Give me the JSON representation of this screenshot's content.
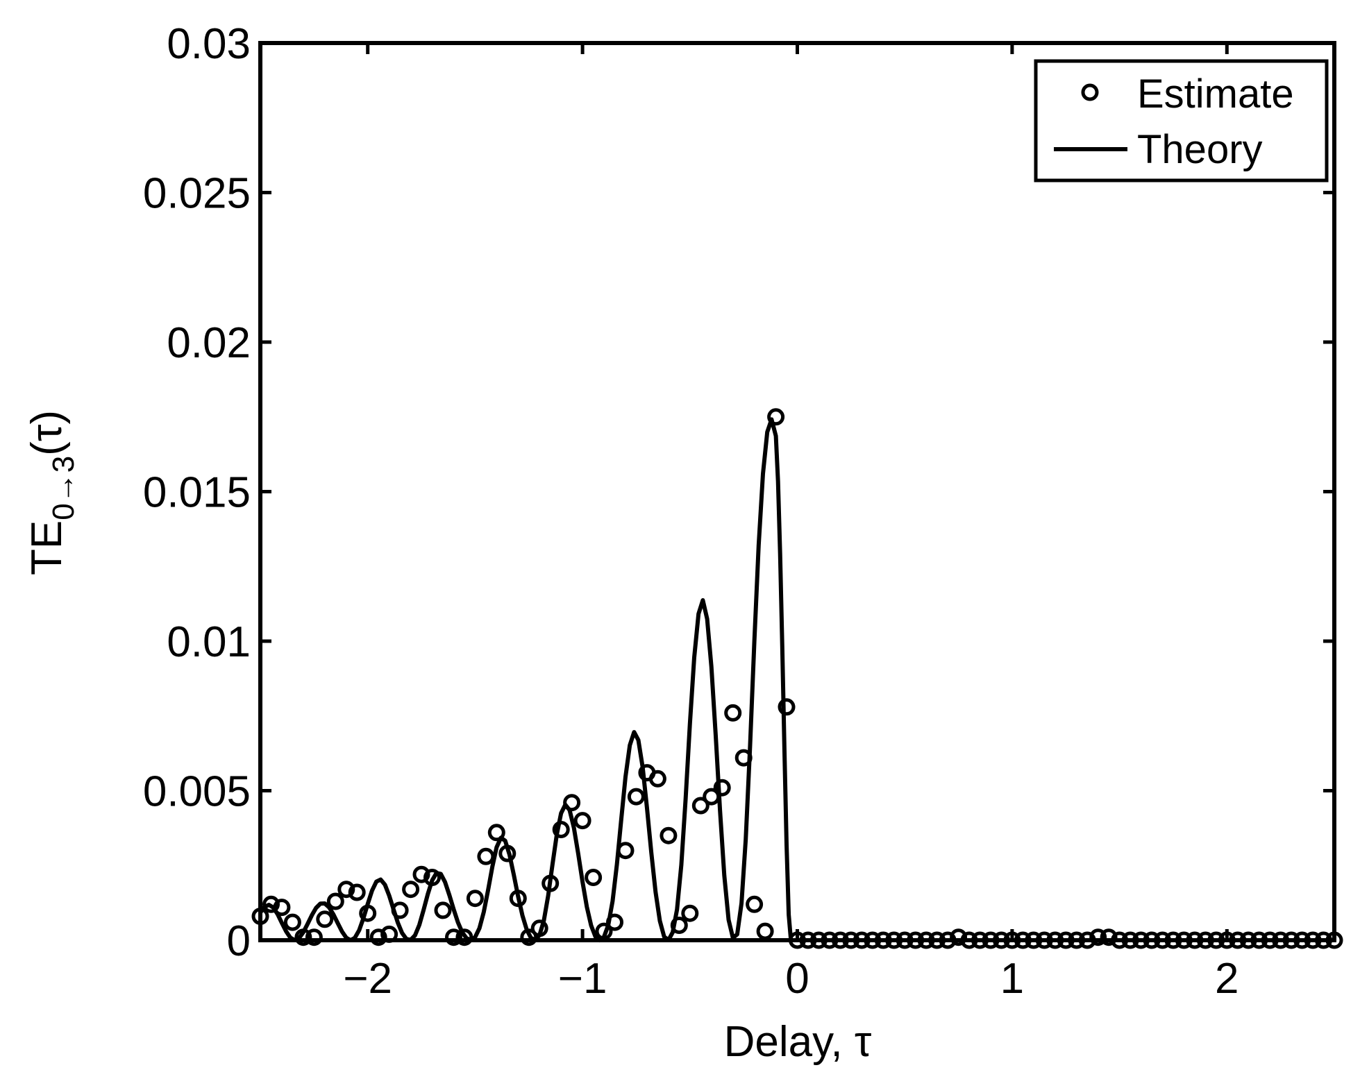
{
  "chart_data": {
    "type": "line",
    "title": "",
    "xlabel": "Delay, τ",
    "ylabel": {
      "base": "TE",
      "subscript": "0→3",
      "suffix": "(τ)"
    },
    "xlim": [
      -2.5,
      2.5
    ],
    "ylim": [
      0,
      0.03
    ],
    "x_ticks": [
      -2,
      -1,
      0,
      1,
      2
    ],
    "x_tick_labels": [
      "−2",
      "−1",
      "0",
      "1",
      "2"
    ],
    "y_ticks": [
      0,
      0.005,
      0.01,
      0.015,
      0.02,
      0.025,
      0.03
    ],
    "y_tick_labels": [
      "0",
      "0.005",
      "0.01",
      "0.015",
      "0.02",
      "0.025",
      "0.03"
    ],
    "grid": false,
    "legend_position": "top-right",
    "series": [
      {
        "name": "Estimate",
        "style": "markers-circle",
        "x": [
          -2.5,
          -2.45,
          -2.4,
          -2.35,
          -2.3,
          -2.25,
          -2.2,
          -2.15,
          -2.1,
          -2.05,
          -2.0,
          -1.95,
          -1.9,
          -1.85,
          -1.8,
          -1.75,
          -1.7,
          -1.65,
          -1.6,
          -1.55,
          -1.5,
          -1.45,
          -1.4,
          -1.35,
          -1.3,
          -1.25,
          -1.2,
          -1.15,
          -1.1,
          -1.05,
          -1.0,
          -0.95,
          -0.9,
          -0.85,
          -0.8,
          -0.75,
          -0.7,
          -0.65,
          -0.6,
          -0.55,
          -0.5,
          -0.45,
          -0.4,
          -0.35,
          -0.3,
          -0.25,
          -0.2,
          -0.15,
          -0.1,
          -0.05,
          0.0,
          0.05,
          0.1,
          0.15,
          0.2,
          0.25,
          0.3,
          0.35,
          0.4,
          0.45,
          0.5,
          0.55,
          0.6,
          0.65,
          0.7,
          0.75,
          0.8,
          0.85,
          0.9,
          0.95,
          1.0,
          1.05,
          1.1,
          1.15,
          1.2,
          1.25,
          1.3,
          1.35,
          1.4,
          1.45,
          1.5,
          1.55,
          1.6,
          1.65,
          1.7,
          1.75,
          1.8,
          1.85,
          1.9,
          1.95,
          2.0,
          2.05,
          2.1,
          2.15,
          2.2,
          2.25,
          2.3,
          2.35,
          2.4,
          2.45,
          2.5
        ],
        "y": [
          0.0008,
          0.0012,
          0.0011,
          0.0006,
          0.0001,
          0.0001,
          0.0007,
          0.0013,
          0.0017,
          0.0016,
          0.0009,
          0.0001,
          0.0002,
          0.001,
          0.0017,
          0.0022,
          0.0021,
          0.001,
          0.0001,
          0.0001,
          0.0014,
          0.0028,
          0.0036,
          0.0029,
          0.0014,
          0.0001,
          0.0004,
          0.0019,
          0.0037,
          0.0046,
          0.004,
          0.0021,
          0.0003,
          0.0006,
          0.003,
          0.0048,
          0.0056,
          0.0054,
          0.0035,
          0.0005,
          0.0009,
          0.0045,
          0.0048,
          0.0051,
          0.0076,
          0.0061,
          0.0012,
          0.0003,
          0.0175,
          0.0078,
          0.0,
          0.0,
          0.0,
          0.0,
          0.0,
          0.0,
          0.0,
          0.0,
          0.0,
          0.0,
          0.0,
          0.0,
          0.0,
          0.0,
          0.0,
          0.0001,
          0.0,
          0.0,
          0.0,
          0.0,
          0.0,
          0.0,
          0.0,
          0.0,
          0.0,
          0.0,
          0.0,
          0.0,
          0.0001,
          0.0001,
          0.0,
          0.0,
          0.0,
          0.0,
          0.0,
          0.0,
          0.0,
          0.0,
          0.0,
          0.0,
          0.0,
          0.0,
          0.0,
          0.0,
          0.0,
          0.0,
          0.0,
          0.0,
          0.0,
          0.0,
          0.0
        ]
      },
      {
        "name": "Theory",
        "style": "solid-line",
        "x": [
          -2.5,
          -2.48,
          -2.46,
          -2.44,
          -2.42,
          -2.4,
          -2.38,
          -2.36,
          -2.34,
          -2.32,
          -2.3,
          -2.28,
          -2.26,
          -2.24,
          -2.22,
          -2.2,
          -2.18,
          -2.16,
          -2.14,
          -2.12,
          -2.1,
          -2.08,
          -2.06,
          -2.04,
          -2.02,
          -2.0,
          -1.98,
          -1.96,
          -1.94,
          -1.92,
          -1.9,
          -1.88,
          -1.86,
          -1.84,
          -1.82,
          -1.8,
          -1.78,
          -1.76,
          -1.74,
          -1.72,
          -1.7,
          -1.68,
          -1.66,
          -1.64,
          -1.62,
          -1.6,
          -1.58,
          -1.56,
          -1.54,
          -1.52,
          -1.5,
          -1.48,
          -1.46,
          -1.44,
          -1.42,
          -1.4,
          -1.38,
          -1.36,
          -1.34,
          -1.32,
          -1.3,
          -1.28,
          -1.26,
          -1.24,
          -1.22,
          -1.2,
          -1.18,
          -1.16,
          -1.14,
          -1.12,
          -1.1,
          -1.08,
          -1.06,
          -1.04,
          -1.02,
          -1.0,
          -0.98,
          -0.96,
          -0.94,
          -0.92,
          -0.9,
          -0.88,
          -0.86,
          -0.84,
          -0.82,
          -0.8,
          -0.78,
          -0.76,
          -0.74,
          -0.72,
          -0.7,
          -0.68,
          -0.66,
          -0.64,
          -0.62,
          -0.6,
          -0.58,
          -0.56,
          -0.54,
          -0.52,
          -0.5,
          -0.48,
          -0.46,
          -0.44,
          -0.42,
          -0.4,
          -0.38,
          -0.36,
          -0.34,
          -0.32,
          -0.3,
          -0.28,
          -0.26,
          -0.24,
          -0.22,
          -0.2,
          -0.18,
          -0.16,
          -0.14,
          -0.12,
          -0.1,
          -0.09,
          -0.08,
          -0.07,
          -0.06,
          -0.05,
          -0.04,
          -0.03,
          -0.02,
          -0.01,
          0.0,
          2.5
        ],
        "y": [
          0.000925,
          0.001121,
          0.001183,
          0.001094,
          0.000875,
          0.000583,
          0.000296,
          8.4e-05,
          1e-06,
          6.8e-05,
          0.000266,
          0.000545,
          0.000839,
          0.001084,
          0.001224,
          0.001229,
          0.0011,
          0.000866,
          0.000576,
          0.000293,
          8.3e-05,
          1e-06,
          8e-05,
          0.000332,
          0.000735,
          0.001214,
          0.001659,
          0.001958,
          0.002029,
          0.001857,
          0.001493,
          0.001035,
          0.00059,
          0.000241,
          4.2e-05,
          1.1e-05,
          0.000163,
          0.000511,
          0.001006,
          0.001547,
          0.002002,
          0.002245,
          0.002218,
          0.001943,
          0.001509,
          0.001032,
          0.000598,
          0.000265,
          6.7e-05,
          7e-06,
          0.000102,
          0.000402,
          0.00094,
          0.001669,
          0.002458,
          0.003106,
          0.003425,
          0.003326,
          0.002862,
          0.002185,
          0.001466,
          0.000831,
          0.000356,
          7.7e-05,
          4e-06,
          0.000172,
          0.000659,
          0.001488,
          0.002528,
          0.003531,
          0.004246,
          0.004531,
          0.004351,
          0.003757,
          0.002892,
          0.001953,
          0.001117,
          0.000493,
          0.000119,
          1e-06,
          0.000111,
          0.000509,
          0.001309,
          0.002532,
          0.004022,
          0.005463,
          0.006518,
          0.006958,
          0.006693,
          0.005786,
          0.004431,
          0.002946,
          0.001614,
          0.000644,
          0.000117,
          5e-06,
          0.000265,
          0.001026,
          0.002516,
          0.004724,
          0.007247,
          0.009456,
          0.010914,
          0.011368,
          0.010744,
          0.009149,
          0.006862,
          0.004355,
          0.002165,
          0.000681,
          7.9e-05,
          0.000195,
          0.001236,
          0.003374,
          0.006473,
          0.009995,
          0.013205,
          0.015596,
          0.016992,
          0.017415,
          0.016864,
          0.015346,
          0.012938,
          0.009831,
          0.006407,
          0.003199,
          0.000856,
          2e-05,
          0.0,
          0.0,
          0.0,
          0.0
        ]
      }
    ]
  }
}
